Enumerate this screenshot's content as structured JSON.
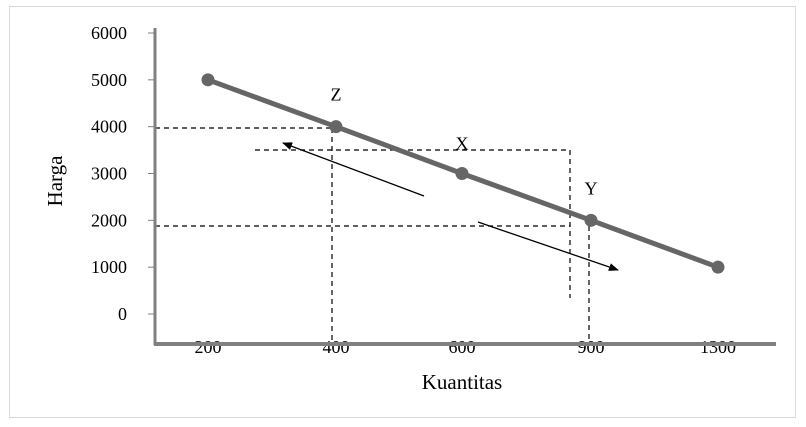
{
  "chart_data": {
    "type": "line",
    "xlabel": "Kuantitas",
    "ylabel": "Harga",
    "categories": [
      "200",
      "400",
      "600",
      "900",
      "1300"
    ],
    "series": [
      {
        "values": [
          5000,
          4000,
          3000,
          2000,
          1000
        ],
        "color": "#666666"
      }
    ],
    "yticks": [
      0,
      1000,
      2000,
      3000,
      4000,
      5000,
      6000
    ],
    "ylim": [
      0,
      6000
    ],
    "grid": false,
    "legend": "none",
    "annotations": [
      {
        "text": "Z",
        "category": "400",
        "y": 4000
      },
      {
        "text": "X",
        "category": "600",
        "y": 3000
      },
      {
        "text": "Y",
        "category": "900",
        "y": 2000
      }
    ]
  }
}
